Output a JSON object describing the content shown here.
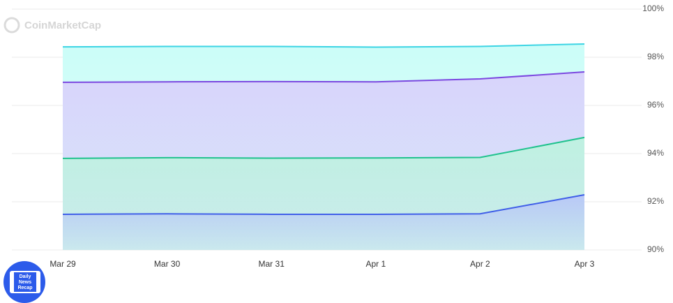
{
  "chart_data": {
    "type": "area",
    "watermark": "CoinMarketCap",
    "badge": [
      "Daily",
      "News",
      "Recap"
    ],
    "categories": [
      "Mar 29",
      "Mar 30",
      "Mar 31",
      "Apr 1",
      "Apr 2",
      "Apr 3"
    ],
    "series": [
      {
        "color": "#3cd4e4",
        "fill": "#cbfdf8",
        "values": [
          98.43,
          98.45,
          98.45,
          98.42,
          98.45,
          98.55
        ]
      },
      {
        "color": "#7b47e0",
        "fill": "#d8d4fb",
        "values": [
          96.96,
          96.98,
          96.99,
          96.98,
          97.1,
          97.39
        ]
      },
      {
        "color": "#1fc28d",
        "fill": "#bff1e1",
        "values": [
          93.8,
          93.83,
          93.81,
          93.82,
          93.84,
          94.67
        ]
      },
      {
        "color": "#3f5ee8",
        "fill": "#b9c8f7",
        "values": [
          91.48,
          91.5,
          91.48,
          91.48,
          91.5,
          92.29
        ]
      }
    ],
    "ylim": [
      90,
      100
    ],
    "yticks": [
      {
        "value": 90,
        "label": "90%"
      },
      {
        "value": 92,
        "label": "92%"
      },
      {
        "value": 94,
        "label": "94%"
      },
      {
        "value": 96,
        "label": "96%"
      },
      {
        "value": 98,
        "label": "98%"
      },
      {
        "value": 100,
        "label": "100%"
      }
    ],
    "grid": true
  }
}
